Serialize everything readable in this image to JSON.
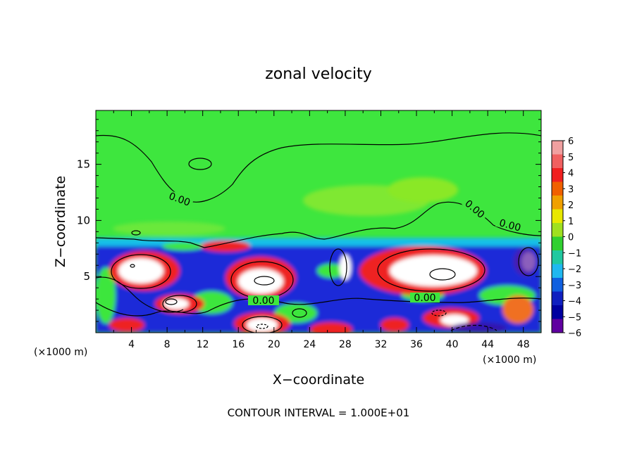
{
  "chart_data": {
    "type": "heatmap",
    "title": "zonal velocity",
    "xlabel": "X−coordinate",
    "ylabel": "Z−coordinate",
    "x_unit_left": "(×1000 m)",
    "x_unit_right": "(×1000 m)",
    "x_ticks": [
      "4",
      "8",
      "12",
      "16",
      "20",
      "24",
      "28",
      "32",
      "36",
      "40",
      "44",
      "48"
    ],
    "y_ticks": [
      "5",
      "10",
      "15"
    ],
    "xlim": [
      0,
      50
    ],
    "ylim": [
      0,
      19.8
    ],
    "contour_labels": [
      "0.00",
      "0.00",
      "0.00",
      "0.00",
      "0.00"
    ],
    "footer": "CONTOUR INTERVAL = 1.000E+01",
    "colorbar": {
      "levels": [
        "6",
        "5",
        "4",
        "3",
        "2",
        "1",
        "0",
        "−1",
        "−2",
        "−3",
        "−4",
        "−5",
        "−6"
      ],
      "colors": [
        "#f0a0a0",
        "#f06060",
        "#f02020",
        "#f06000",
        "#f0a000",
        "#e8e800",
        "#a0e020",
        "#30d030",
        "#20c8a0",
        "#20b8f0",
        "#1060e0",
        "#1020c0",
        "#0000a0",
        "#6000a0"
      ],
      "range": [
        -6,
        6
      ]
    },
    "field_colors": {
      "background": "#3ee63e",
      "upper_light": "#6ae83a",
      "positive": "#ee2222",
      "positive_core": "#ffffff",
      "negative": "#1a2ad8",
      "negative_edge": "#18c0e8"
    }
  }
}
